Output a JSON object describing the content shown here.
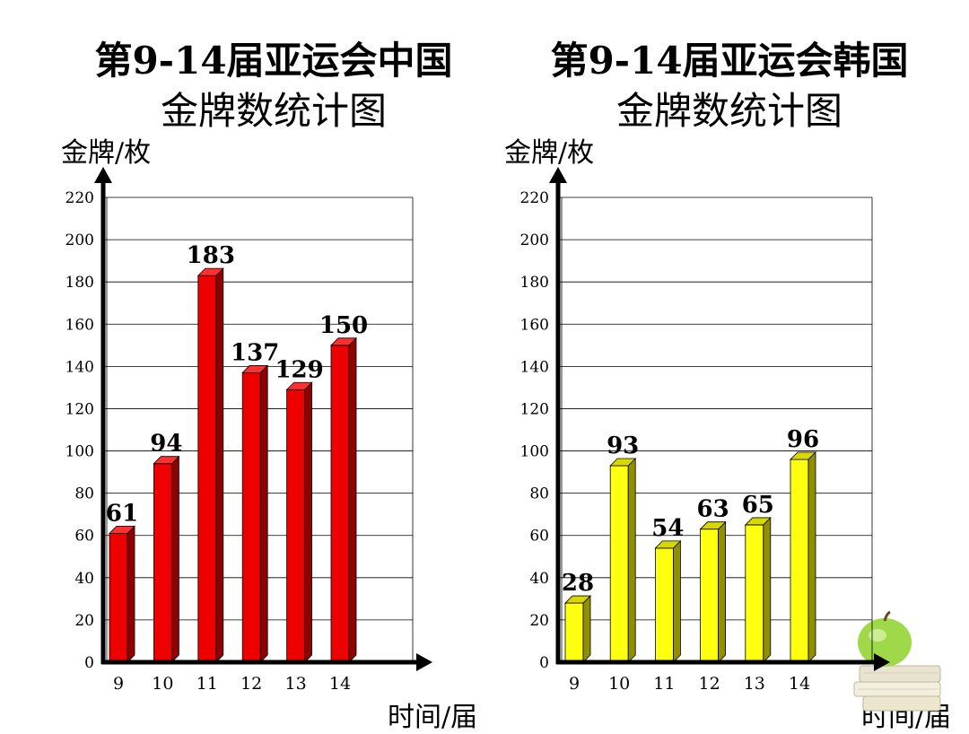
{
  "chart_data": [
    {
      "type": "bar",
      "title_line1": "第9-14届亚运会中国",
      "title_line2": "金牌数统计图",
      "ylabel": "金牌/枚",
      "xlabel": "时间/届",
      "categories": [
        "9",
        "10",
        "11",
        "12",
        "13",
        "14"
      ],
      "values": [
        61,
        94,
        183,
        137,
        129,
        150
      ],
      "ylim": [
        0,
        220
      ],
      "yticks": [
        "0",
        "20",
        "40",
        "60",
        "80",
        "100",
        "120",
        "140",
        "160",
        "180",
        "200",
        "220"
      ],
      "grid": true,
      "bar_color": "#ee0000",
      "bar_side_color": "#8f0000",
      "bar_top_color": "#ff3030"
    },
    {
      "type": "bar",
      "title_line1": "第9-14届亚运会韩国",
      "title_line2": "金牌数统计图",
      "ylabel": "金牌/枚",
      "xlabel": "时间/届",
      "categories": [
        "9",
        "10",
        "11",
        "12",
        "13",
        "14"
      ],
      "values": [
        28,
        93,
        54,
        63,
        65,
        96
      ],
      "ylim": [
        0,
        220
      ],
      "yticks": [
        "0",
        "20",
        "40",
        "60",
        "80",
        "100",
        "120",
        "140",
        "160",
        "180",
        "200",
        "220"
      ],
      "grid": true,
      "bar_color": "#ffff10",
      "bar_side_color": "#8f8f00",
      "bar_top_color": "#d8d800"
    }
  ]
}
